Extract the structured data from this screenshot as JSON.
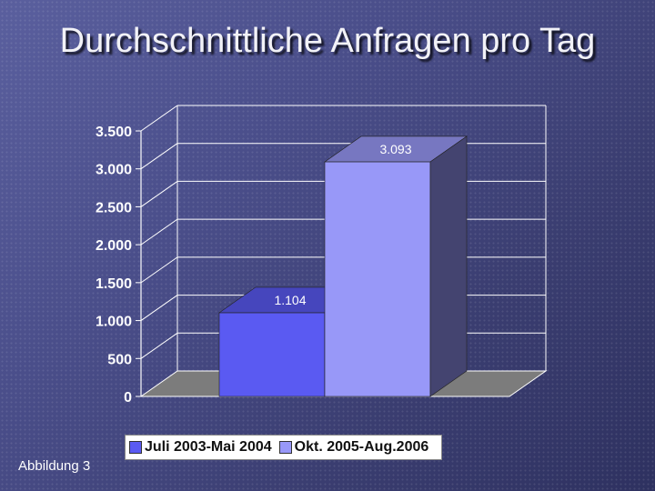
{
  "page": {
    "title": "Durchschnittliche Anfragen pro Tag",
    "footnote": "Abbildung 3"
  },
  "chart_data": {
    "type": "bar",
    "title": "Durchschnittliche Anfragen pro Tag",
    "xlabel": "",
    "ylabel": "",
    "ylim": [
      0,
      3500
    ],
    "yticks": [
      0,
      500,
      1000,
      1500,
      2000,
      2500,
      3000,
      3500
    ],
    "ytick_labels": [
      "0",
      "500",
      "1.000",
      "1.500",
      "2.000",
      "2.500",
      "3.000",
      "3.500"
    ],
    "grid": true,
    "three_d": true,
    "legend_position": "bottom",
    "series": [
      {
        "name": "Juli 2003-Mai 2004",
        "values": [
          1104
        ],
        "label": "1.104",
        "color": "#5a5af2"
      },
      {
        "name": "Okt. 2005-Aug.2006",
        "values": [
          3093
        ],
        "label": "3.093",
        "color": "#9898f8"
      }
    ],
    "colors": {
      "axis": "#ffffff",
      "floor": "#7c7c7c",
      "wall": "none",
      "label": "#ffffff"
    }
  }
}
